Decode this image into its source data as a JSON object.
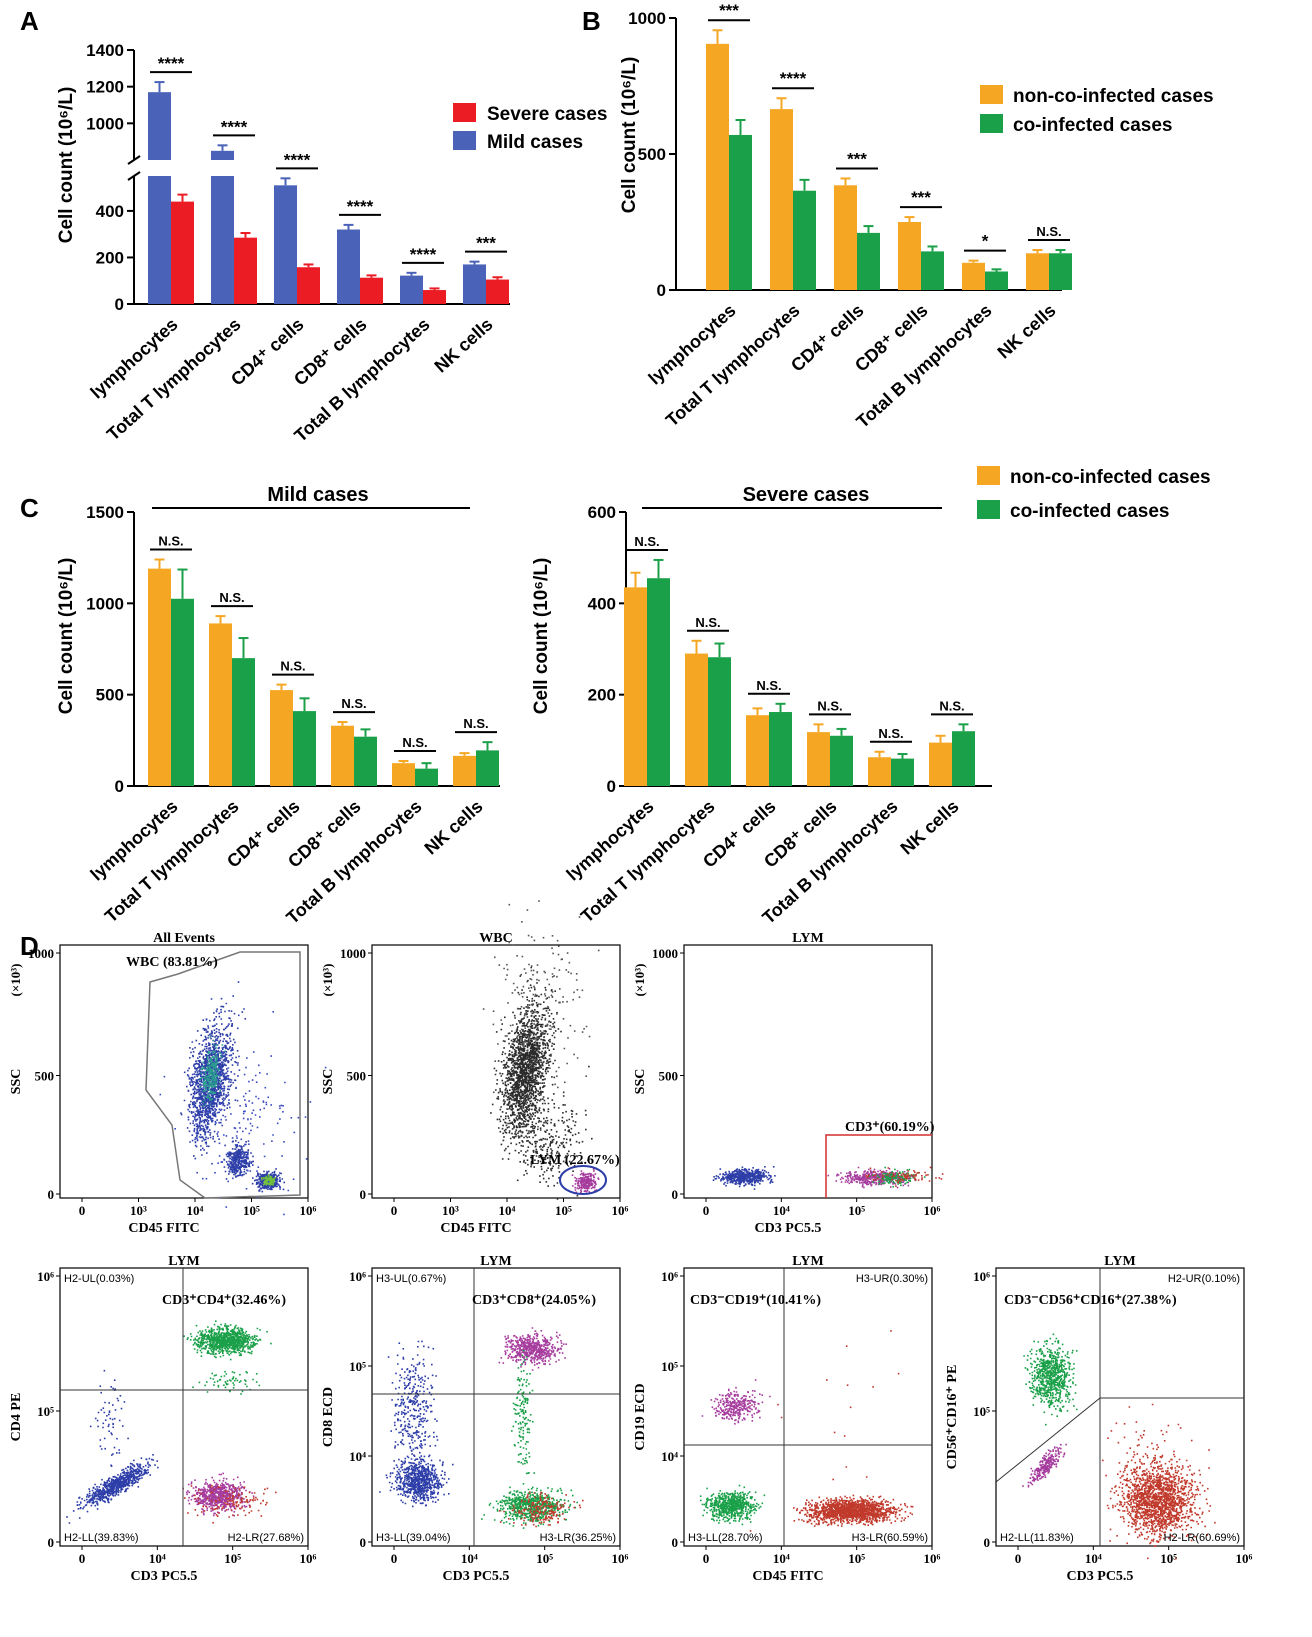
{
  "colors": {
    "mild": "#4a63b8",
    "severe": "#ec1c24",
    "non_coinfected": "#f5a623",
    "coinfected": "#1aa048"
  },
  "panels": {
    "A": {
      "label": "A"
    },
    "B": {
      "label": "B"
    },
    "C": {
      "label": "C"
    },
    "D": {
      "label": "D"
    }
  },
  "chart_data": [
    {
      "id": "A",
      "type": "bar",
      "categories": [
        "lymphocytes",
        "Total T lymphocytes",
        "CD4⁺ cells",
        "CD8⁺ cells",
        "Total B lymphocytes",
        "NK cells"
      ],
      "series": [
        {
          "name": "Mild cases",
          "values": [
            1170,
            850,
            510,
            320,
            122,
            170
          ],
          "errors": [
            55,
            30,
            30,
            20,
            12,
            12
          ]
        },
        {
          "name": "Severe cases",
          "values": [
            440,
            285,
            158,
            113,
            60,
            105
          ],
          "errors": [
            30,
            20,
            12,
            10,
            7,
            10
          ]
        }
      ],
      "legend_order": [
        "Severe cases",
        "Mild cases"
      ],
      "significance": [
        "****",
        "****",
        "****",
        "****",
        "****",
        "***"
      ],
      "ylabel": "Cell count (10⁶/L)",
      "broken_axis": {
        "lower_range": [
          0,
          550
        ],
        "upper_range": [
          800,
          1400
        ]
      },
      "yticks": [
        "0",
        "200",
        "400",
        "1000",
        "1200",
        "1400"
      ]
    },
    {
      "id": "B",
      "type": "bar",
      "categories": [
        "lymphocytes",
        "Total T lymphocytes",
        "CD4⁺ cells",
        "CD8⁺ cells",
        "Total B lymphocytes",
        "NK cells"
      ],
      "series": [
        {
          "name": "non-co-infected cases",
          "values": [
            905,
            665,
            385,
            250,
            100,
            135
          ],
          "errors": [
            50,
            40,
            25,
            18,
            8,
            12
          ]
        },
        {
          "name": "co-infected cases",
          "values": [
            570,
            365,
            210,
            142,
            68,
            135
          ],
          "errors": [
            55,
            40,
            25,
            18,
            8,
            12
          ]
        }
      ],
      "significance": [
        "***",
        "****",
        "***",
        "***",
        "*",
        "N.S."
      ],
      "ylabel": "Cell count (10⁶/L)",
      "ylim": [
        0,
        1000
      ],
      "yticks": [
        "0",
        "500",
        "1000"
      ]
    },
    {
      "id": "C-mild",
      "type": "bar",
      "title": "Mild cases",
      "categories": [
        "lymphocytes",
        "Total T lymphocytes",
        "CD4⁺ cells",
        "CD8⁺ cells",
        "Total B lymphocytes",
        "NK cells"
      ],
      "series": [
        {
          "name": "non-co-infected cases",
          "values": [
            1190,
            890,
            525,
            330,
            125,
            165
          ],
          "errors": [
            50,
            40,
            30,
            20,
            12,
            15
          ]
        },
        {
          "name": "co-infected cases",
          "values": [
            1025,
            700,
            410,
            270,
            95,
            195
          ],
          "errors": [
            160,
            110,
            70,
            40,
            30,
            45
          ]
        }
      ],
      "significance": [
        "N.S.",
        "N.S.",
        "N.S.",
        "N.S.",
        "N.S.",
        "N.S."
      ],
      "ylabel": "Cell count (10⁶/L)",
      "ylim": [
        0,
        1500
      ],
      "yticks": [
        "0",
        "500",
        "1000",
        "1500"
      ]
    },
    {
      "id": "C-severe",
      "type": "bar",
      "title": "Severe cases",
      "categories": [
        "lymphocytes",
        "Total T lymphocytes",
        "CD4⁺ cells",
        "CD8⁺ cells",
        "Total B lymphocytes",
        "NK cells"
      ],
      "series": [
        {
          "name": "non-co-infected cases",
          "values": [
            435,
            290,
            155,
            118,
            63,
            95
          ],
          "errors": [
            32,
            28,
            15,
            17,
            12,
            15
          ]
        },
        {
          "name": "co-infected cases",
          "values": [
            455,
            282,
            162,
            110,
            60,
            120
          ],
          "errors": [
            40,
            30,
            18,
            15,
            10,
            15
          ]
        }
      ],
      "significance": [
        "N.S.",
        "N.S.",
        "N.S.",
        "N.S.",
        "N.S.",
        "N.S."
      ],
      "ylabel": "Cell count (10⁶/L)",
      "ylim": [
        0,
        600
      ],
      "yticks": [
        "0",
        "200",
        "400",
        "600"
      ]
    }
  ],
  "legend_C": [
    "non-co-infected cases",
    "co-infected cases"
  ],
  "flow": {
    "plots": [
      {
        "id": "all-events",
        "title": "All Events",
        "ylabel": "SSC",
        "yunit": "(×10³)",
        "xlabel": "CD45 FITC",
        "yticks": [
          "0",
          "500",
          "1000"
        ],
        "xticks": [
          "0",
          "10³",
          "10⁴",
          "10⁵",
          "10⁶"
        ],
        "gate": "WBC (83.81%)"
      },
      {
        "id": "wbc",
        "title": "WBC",
        "ylabel": "SSC",
        "yunit": "(×10³)",
        "xlabel": "CD45 FITC",
        "yticks": [
          "0",
          "500",
          "1000"
        ],
        "xticks": [
          "0",
          "10³",
          "10⁴",
          "10⁵",
          "10⁶"
        ],
        "gate": "LYM (22.67%)"
      },
      {
        "id": "lym-cd3",
        "title": "LYM",
        "ylabel": "SSC",
        "yunit": "(×10³)",
        "xlabel": "CD3 PC5.5",
        "yticks": [
          "0",
          "500",
          "1000"
        ],
        "xticks": [
          "0",
          "10⁴",
          "10⁵",
          "10⁶"
        ],
        "gate": "CD3⁺(60.19%)"
      },
      {
        "id": "cd4",
        "title": "LYM",
        "ylabel": "CD4 PE",
        "xlabel": "CD3 PC5.5",
        "yticks": [
          "0",
          "10⁵",
          "10⁶"
        ],
        "xticks": [
          "0",
          "10⁴",
          "10⁵",
          "10⁶"
        ],
        "gate": "CD3⁺CD4⁺(32.46%)",
        "quads": [
          "H2-UL(0.03%)",
          "H2-LL(39.83%)",
          "H2-LR(27.68%)"
        ]
      },
      {
        "id": "cd8",
        "title": "LYM",
        "ylabel": "CD8 ECD",
        "xlabel": "CD3 PC5.5",
        "yticks": [
          "0",
          "10⁴",
          "10⁵",
          "10⁶"
        ],
        "xticks": [
          "0",
          "10⁴",
          "10⁵",
          "10⁶"
        ],
        "gate": "CD3⁺CD8⁺(24.05%)",
        "quads": [
          "H3-UL(0.67%)",
          "H3-LL(39.04%)",
          "H3-LR(36.25%)"
        ]
      },
      {
        "id": "cd19",
        "title": "LYM",
        "ylabel": "CD19 ECD",
        "xlabel": "CD45 FITC",
        "yticks": [
          "0",
          "10⁴",
          "10⁵",
          "10⁶"
        ],
        "xticks": [
          "0",
          "10⁴",
          "10⁵",
          "10⁶"
        ],
        "gate": "CD3⁻CD19⁺(10.41%)",
        "quads": [
          "H3-UR(0.30%)",
          "H3-LL(28.70%)",
          "H3-LR(60.59%)"
        ]
      },
      {
        "id": "nk",
        "title": "LYM",
        "ylabel": "CD56⁺CD16⁺ PE",
        "xlabel": "CD3 PC5.5",
        "yticks": [
          "0",
          "10⁵",
          "10⁶"
        ],
        "xticks": [
          "0",
          "10⁴",
          "10⁵",
          "10⁶"
        ],
        "gate": "CD3⁻CD56⁺CD16⁺(27.38%)",
        "quads": [
          "H2-UR(0.10%)",
          "H2-LL(11.83%)",
          "H2-LR(60.69%)"
        ]
      }
    ]
  }
}
